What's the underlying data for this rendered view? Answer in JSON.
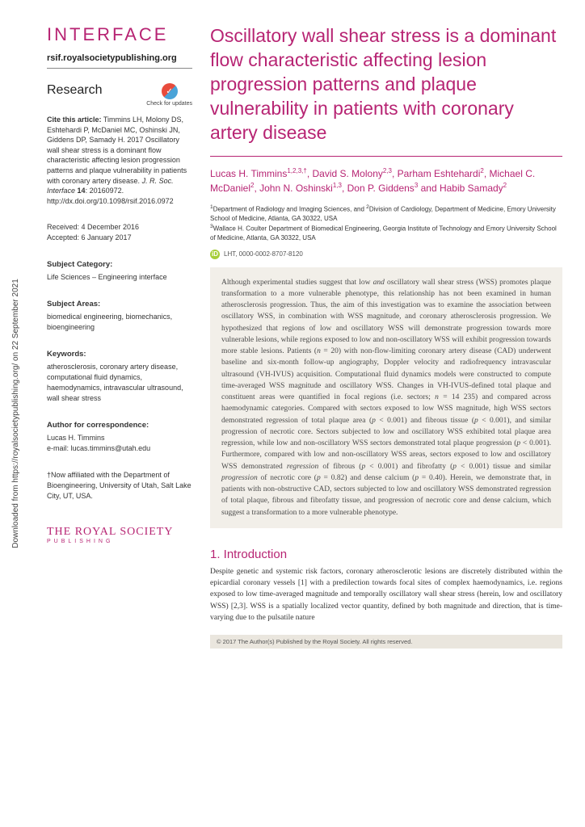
{
  "download_strip": "Downloaded from https://royalsocietypublishing.org/ on 22 September 2021",
  "journal": {
    "name": "INTERFACE",
    "url": "rsif.royalsocietypublishing.org"
  },
  "article_type": "Research",
  "check_updates_label": "Check for updates",
  "citation": {
    "prefix": "Cite this article:",
    "text": "Timmins LH, Molony DS, Eshtehardi P, McDaniel MC, Oshinski JN, Giddens DP, Samady H. 2017 Oscillatory wall shear stress is a dominant flow characteristic affecting lesion progression patterns and plaque vulnerability in patients with coronary artery disease.",
    "journal_ital": "J. R. Soc. Interface",
    "volume": "14",
    "article_no": "20160972.",
    "doi": "http://dx.doi.org/10.1098/rsif.2016.0972"
  },
  "dates": {
    "received": "Received: 4 December 2016",
    "accepted": "Accepted: 6 January 2017"
  },
  "subject_category": {
    "heading": "Subject Category:",
    "text": "Life Sciences – Engineering interface"
  },
  "subject_areas": {
    "heading": "Subject Areas:",
    "text": "biomedical engineering, biomechanics, bioengineering"
  },
  "keywords": {
    "heading": "Keywords:",
    "text": "atherosclerosis, coronary artery disease, computational fluid dynamics, haemodynamics, intravascular ultrasound, wall shear stress"
  },
  "correspondence": {
    "heading": "Author for correspondence:",
    "name": "Lucas H. Timmins",
    "email": "e-mail: lucas.timmins@utah.edu"
  },
  "affiliation_note": "†Now affiliated with the Department of Bioengineering, University of Utah, Salt Lake City, UT, USA.",
  "publisher": {
    "name": "THE ROYAL SOCIETY",
    "sub": "PUBLISHING"
  },
  "title": "Oscillatory wall shear stress is a dominant flow characteristic affecting lesion progression patterns and plaque vulnerability in patients with coronary artery disease",
  "authors_html": "Lucas H. Timmins<sup>1,2,3,†</sup>, David S. Molony<sup>2,3</sup>, Parham Eshtehardi<sup>2</sup>, Michael C. McDaniel<sup>2</sup>, John N. Oshinski<sup>1,3</sup>, Don P. Giddens<sup>3</sup> and Habib Samady<sup>2</sup>",
  "affiliations": {
    "a1": "1Department of Radiology and Imaging Sciences, and 2Division of Cardiology, Department of Medicine, Emory University School of Medicine, Atlanta, GA 30322, USA",
    "a3": "3Wallace H. Coulter Department of Biomedical Engineering, Georgia Institute of Technology and Emory University School of Medicine, Atlanta, GA 30322, USA"
  },
  "orcid": "LHT, 0000-0002-8707-8120",
  "abstract": "Although experimental studies suggest that low and oscillatory wall shear stress (WSS) promotes plaque transformation to a more vulnerable phenotype, this relationship has not been examined in human atherosclerosis progression. Thus, the aim of this investigation was to examine the association between oscillatory WSS, in combination with WSS magnitude, and coronary atherosclerosis progression. We hypothesized that regions of low and oscillatory WSS will demonstrate progression towards more vulnerable lesions, while regions exposed to low and non-oscillatory WSS will exhibit progression towards more stable lesions. Patients (n = 20) with non-flow-limiting coronary artery disease (CAD) underwent baseline and six-month follow-up angiography, Doppler velocity and radiofrequency intravascular ultrasound (VH-IVUS) acquisition. Computational fluid dynamics models were constructed to compute time-averaged WSS magnitude and oscillatory WSS. Changes in VH-IVUS-defined total plaque and constituent areas were quantified in focal regions (i.e. sectors; n = 14 235) and compared across haemodynamic categories. Compared with sectors exposed to low WSS magnitude, high WSS sectors demonstrated regression of total plaque area (p < 0.001) and fibrous tissue (p < 0.001), and similar progression of necrotic core. Sectors subjected to low and oscillatory WSS exhibited total plaque area regression, while low and non-oscillatory WSS sectors demonstrated total plaque progression (p < 0.001). Furthermore, compared with low and non-oscillatory WSS areas, sectors exposed to low and oscillatory WSS demonstrated regression of fibrous (p < 0.001) and fibrofatty (p < 0.001) tissue and similar progression of necrotic core (p = 0.82) and dense calcium (p = 0.40). Herein, we demonstrate that, in patients with non-obstructive CAD, sectors subjected to low and oscillatory WSS demonstrated regression of total plaque, fibrous and fibrofatty tissue, and progression of necrotic core and dense calcium, which suggest a transformation to a more vulnerable phenotype.",
  "intro": {
    "heading": "1. Introduction",
    "text": "Despite genetic and systemic risk factors, coronary atherosclerotic lesions are discretely distributed within the epicardial coronary vessels [1] with a predilection towards focal sites of complex haemodynamics, i.e. regions exposed to low time-averaged magnitude and temporally oscillatory wall shear stress (herein, low and oscillatory WSS) [2,3]. WSS is a spatially localized vector quantity, defined by both magnitude and direction, that is time-varying due to the pulsatile nature"
  },
  "copyright": "© 2017 The Author(s) Published by the Royal Society. All rights reserved.",
  "colors": {
    "accent": "#b72473",
    "abstract_bg": "#f2efe9"
  }
}
